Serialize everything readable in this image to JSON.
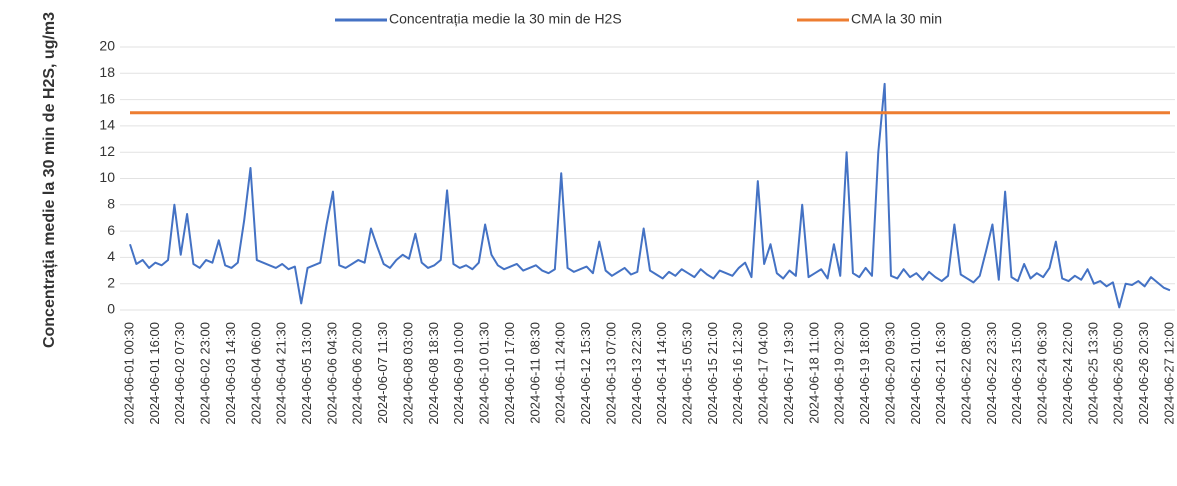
{
  "chart_data": {
    "type": "line",
    "ylabel": "Concentrația medie la 30 min de H2S, ug/m3",
    "categories": [
      "2024-06-01 00:30",
      null,
      null,
      null,
      "2024-06-01 16:00",
      null,
      null,
      null,
      "2024-06-02 07:30",
      null,
      null,
      null,
      "2024-06-02 23:00",
      null,
      null,
      null,
      "2024-06-03 14:30",
      null,
      null,
      null,
      "2024-06-04 06:00",
      null,
      null,
      null,
      "2024-06-04 21:30",
      null,
      null,
      null,
      "2024-06-05 13:00",
      null,
      null,
      null,
      "2024-06-06 04:30",
      null,
      null,
      null,
      "2024-06-06 20:00",
      null,
      null,
      null,
      "2024-06-07 11:30",
      null,
      null,
      null,
      "2024-06-08 03:00",
      null,
      null,
      null,
      "2024-06-08 18:30",
      null,
      null,
      null,
      "2024-06-09 10:00",
      null,
      null,
      null,
      "2024-06-10 01:30",
      null,
      null,
      null,
      "2024-06-10 17:00",
      null,
      null,
      null,
      "2024-06-11 08:30",
      null,
      null,
      null,
      "2024-06-11 24:00",
      null,
      null,
      null,
      "2024-06-12 15:30",
      null,
      null,
      null,
      "2024-06-13 07:00",
      null,
      null,
      null,
      "2024-06-13 22:30",
      null,
      null,
      null,
      "2024-06-14 14:00",
      null,
      null,
      null,
      "2024-06-15 05:30",
      null,
      null,
      null,
      "2024-06-15 21:00",
      null,
      null,
      null,
      "2024-06-16 12:30",
      null,
      null,
      null,
      "2024-06-17 04:00",
      null,
      null,
      null,
      "2024-06-17 19:30",
      null,
      null,
      null,
      "2024-06-18 11:00",
      null,
      null,
      null,
      "2024-06-19 02:30",
      null,
      null,
      null,
      "2024-06-19 18:00",
      null,
      null,
      null,
      "2024-06-20 09:30",
      null,
      null,
      null,
      "2024-06-21 01:00",
      null,
      null,
      null,
      "2024-06-21 16:30",
      null,
      null,
      null,
      "2024-06-22 08:00",
      null,
      null,
      null,
      "2024-06-22 23:30",
      null,
      null,
      null,
      "2024-06-23 15:00",
      null,
      null,
      null,
      "2024-06-24 06:30",
      null,
      null,
      null,
      "2024-06-24 22:00",
      null,
      null,
      null,
      "2024-06-25 13:30",
      null,
      null,
      null,
      "2024-06-26 05:00",
      null,
      null,
      null,
      "2024-06-26 20:30",
      null,
      null,
      null,
      "2024-06-27 12:00"
    ],
    "series": [
      {
        "name": "Concentrația medie la 30 min de H2S",
        "color": "#4472c4",
        "values": [
          5,
          3.5,
          3.8,
          3.2,
          3.6,
          3.4,
          3.8,
          8,
          4.2,
          7.3,
          3.5,
          3.2,
          3.8,
          3.6,
          5.3,
          3.4,
          3.2,
          3.6,
          6.8,
          10.8,
          3.8,
          3.6,
          3.4,
          3.2,
          3.5,
          3.1,
          3.3,
          0.5,
          3.2,
          3.4,
          3.6,
          6.5,
          9,
          3.4,
          3.2,
          3.5,
          3.8,
          3.6,
          6.2,
          4.8,
          3.5,
          3.2,
          3.8,
          4.2,
          3.9,
          5.8,
          3.6,
          3.2,
          3.4,
          3.8,
          9.1,
          3.5,
          3.2,
          3.4,
          3.1,
          3.6,
          6.5,
          4.2,
          3.4,
          3.1,
          3.3,
          3.5,
          3,
          3.2,
          3.4,
          3,
          2.8,
          3.1,
          10.4,
          3.2,
          2.9,
          3.1,
          3.3,
          2.8,
          5.2,
          3,
          2.6,
          2.9,
          3.2,
          2.7,
          2.9,
          6.2,
          3,
          2.7,
          2.4,
          2.9,
          2.6,
          3.1,
          2.8,
          2.5,
          3.1,
          2.7,
          2.4,
          3,
          2.8,
          2.6,
          3.2,
          3.6,
          2.5,
          9.8,
          3.5,
          5,
          2.8,
          2.4,
          3,
          2.6,
          8,
          2.5,
          2.8,
          3.1,
          2.4,
          5,
          2.6,
          12,
          2.8,
          2.5,
          3.2,
          2.6,
          12,
          17.2,
          2.6,
          2.4,
          3.1,
          2.5,
          2.8,
          2.3,
          2.9,
          2.5,
          2.2,
          2.6,
          6.5,
          2.7,
          2.4,
          2.1,
          2.6,
          4.5,
          6.5,
          2.3,
          9,
          2.5,
          2.2,
          3.5,
          2.4,
          2.8,
          2.5,
          3.2,
          5.2,
          2.4,
          2.2,
          2.6,
          2.3,
          3.1,
          2,
          2.2,
          1.8,
          2.1,
          0.2,
          2,
          1.9,
          2.2,
          1.8,
          2.5,
          2.1,
          1.7,
          1.5
        ]
      },
      {
        "name": "CMA la 30 min",
        "color": "#ed7d31",
        "values": [
          15,
          15,
          15,
          15,
          15,
          15,
          15,
          15,
          15,
          15,
          15,
          15,
          15,
          15,
          15,
          15,
          15,
          15,
          15,
          15,
          15,
          15,
          15,
          15,
          15,
          15,
          15,
          15,
          15,
          15,
          15,
          15,
          15,
          15,
          15,
          15,
          15,
          15,
          15,
          15,
          15,
          15,
          15,
          15,
          15,
          15,
          15,
          15,
          15,
          15,
          15,
          15,
          15,
          15,
          15,
          15,
          15,
          15,
          15,
          15,
          15,
          15,
          15,
          15,
          15,
          15,
          15,
          15,
          15,
          15,
          15,
          15,
          15,
          15,
          15,
          15,
          15,
          15,
          15,
          15,
          15,
          15,
          15,
          15,
          15,
          15,
          15,
          15,
          15,
          15,
          15,
          15,
          15,
          15,
          15,
          15,
          15,
          15,
          15,
          15,
          15,
          15,
          15,
          15,
          15,
          15,
          15,
          15,
          15,
          15,
          15,
          15,
          15,
          15,
          15,
          15,
          15,
          15,
          15,
          15,
          15,
          15,
          15,
          15,
          15,
          15,
          15,
          15,
          15,
          15,
          15,
          15,
          15,
          15,
          15,
          15,
          15,
          15,
          15,
          15,
          15,
          15,
          15,
          15,
          15,
          15,
          15,
          15,
          15,
          15,
          15,
          15,
          15,
          15,
          15,
          15,
          15,
          15,
          15,
          15,
          15,
          15,
          15,
          15,
          15
        ]
      }
    ],
    "ylim": [
      0,
      20
    ],
    "yticks": [
      0,
      2,
      4,
      6,
      8,
      10,
      12,
      14,
      16,
      18,
      20
    ],
    "grid": true,
    "legend": "top"
  }
}
